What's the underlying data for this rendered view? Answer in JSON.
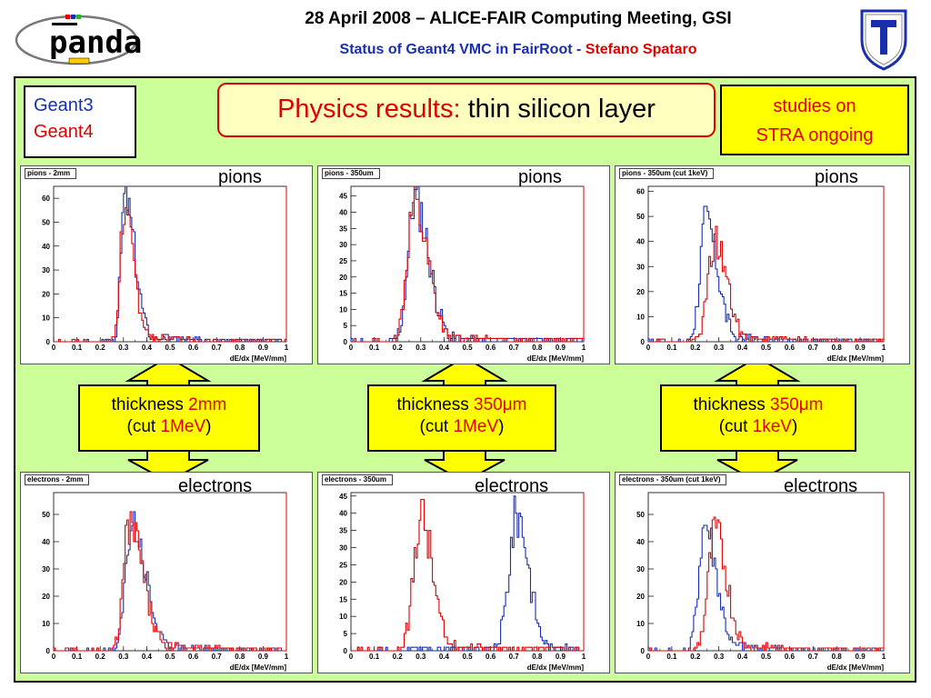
{
  "header": {
    "logo_text": "panda",
    "title_line1": "28 April 2008 – ALICE-FAIR Computing Meeting, GSI",
    "title_line2_blue": "Status of Geant4 VMC in FairRoot -",
    "title_line2_red": "Stefano Spataro"
  },
  "legend": {
    "geant3": "Geant3",
    "geant4": "Geant4"
  },
  "physics_box": {
    "red": "Physics results:",
    "black": "thin silicon layer"
  },
  "studies_box": {
    "line1": "studies on",
    "line2": "STRA ongoing"
  },
  "colors": {
    "geant3": "#1a2fb0",
    "geant4": "#e00000",
    "panel": "#ccff99",
    "arrow": "#ffff00"
  },
  "thickness_labels": [
    {
      "pre": "thickness ",
      "value": "2mm",
      "cut_pre": "(cut ",
      "cut": "1MeV",
      "cut_post": ")"
    },
    {
      "pre": "thickness ",
      "value": "350μm",
      "cut_pre": "(cut ",
      "cut": "1MeV",
      "cut_post": ")"
    },
    {
      "pre": "thickness ",
      "value": "350μm",
      "cut_pre": "(cut ",
      "cut": "1keV",
      "cut_post": ")"
    }
  ],
  "chart_data": [
    {
      "type": "line",
      "title": "pions - 2mm",
      "label": "pions",
      "xlabel": "dE/dx [MeV/mm]",
      "xlim": [
        0,
        1
      ],
      "ylim": [
        0,
        65
      ],
      "xticks": [
        "0",
        "0.1",
        "0.2",
        "0.3",
        "0.4",
        "0.5",
        "0.6",
        "0.7",
        "0.8",
        "0.9",
        "1"
      ],
      "yticks": [
        "0",
        "10",
        "20",
        "30",
        "40",
        "50",
        "60"
      ],
      "series": [
        {
          "name": "Geant3",
          "color": "#1a2fb0",
          "peaks": [
            {
              "mu": 0.305,
              "sigL": 0.016,
              "sigR": 0.045,
              "amp": 60
            }
          ],
          "tail": 3,
          "seed": 3
        },
        {
          "name": "Geant4",
          "color": "#e00000",
          "peaks": [
            {
              "mu": 0.3,
              "sigL": 0.016,
              "sigR": 0.045,
              "amp": 53
            }
          ],
          "tail": 3,
          "seed": 7
        }
      ]
    },
    {
      "type": "line",
      "title": "pions - 350um",
      "label": "pions",
      "xlabel": "dE/dx [MeV/mm]",
      "xlim": [
        0,
        1
      ],
      "ylim": [
        0,
        48
      ],
      "xticks": [
        "0",
        "0.1",
        "0.2",
        "0.3",
        "0.4",
        "0.5",
        "0.6",
        "0.7",
        "0.8",
        "0.9",
        "1"
      ],
      "yticks": [
        "0",
        "5",
        "10",
        "15",
        "20",
        "25",
        "30",
        "35",
        "40",
        "45"
      ],
      "series": [
        {
          "name": "Geant3",
          "color": "#1a2fb0",
          "peaks": [
            {
              "mu": 0.275,
              "sigL": 0.03,
              "sigR": 0.06,
              "amp": 44
            }
          ],
          "tail": 2.5,
          "seed": 11
        },
        {
          "name": "Geant4",
          "color": "#e00000",
          "peaks": [
            {
              "mu": 0.27,
              "sigL": 0.03,
              "sigR": 0.06,
              "amp": 42
            }
          ],
          "tail": 2.5,
          "seed": 13
        }
      ]
    },
    {
      "type": "line",
      "title": "pions - 350um (cut 1keV)",
      "label": "pions",
      "xlabel": "dE/dx [MeV/mm]",
      "xlim": [
        0,
        1
      ],
      "ylim": [
        0,
        62
      ],
      "xticks": [
        "0",
        "0.1",
        "0.2",
        "0.3",
        "0.4",
        "0.5",
        "0.6",
        "0.7",
        "0.8",
        "0.9",
        "1"
      ],
      "yticks": [
        "0",
        "10",
        "20",
        "30",
        "40",
        "50",
        "60"
      ],
      "series": [
        {
          "name": "Geant3",
          "color": "#1a2fb0",
          "peaks": [
            {
              "mu": 0.245,
              "sigL": 0.025,
              "sigR": 0.05,
              "amp": 48
            }
          ],
          "tail": 3,
          "seed": 17
        },
        {
          "name": "Geant4",
          "color": "#e00000",
          "peaks": [
            {
              "mu": 0.285,
              "sigL": 0.03,
              "sigR": 0.05,
              "amp": 40
            }
          ],
          "tail": 3,
          "seed": 19
        }
      ]
    },
    {
      "type": "line",
      "title": "electrons - 2mm",
      "label": "electrons",
      "xlabel": "dE/dx [MeV/mm]",
      "xlim": [
        0,
        1
      ],
      "ylim": [
        0,
        58
      ],
      "xticks": [
        "0",
        "0.1",
        "0.2",
        "0.3",
        "0.4",
        "0.5",
        "0.6",
        "0.7",
        "0.8",
        "0.9",
        "1"
      ],
      "yticks": [
        "0",
        "10",
        "20",
        "30",
        "40",
        "50"
      ],
      "series": [
        {
          "name": "Geant3",
          "color": "#1a2fb0",
          "peaks": [
            {
              "mu": 0.335,
              "sigL": 0.025,
              "sigR": 0.06,
              "amp": 47
            }
          ],
          "tail": 3,
          "seed": 23
        },
        {
          "name": "Geant4",
          "color": "#e00000",
          "peaks": [
            {
              "mu": 0.325,
              "sigL": 0.025,
              "sigR": 0.06,
              "amp": 46
            }
          ],
          "tail": 3,
          "seed": 29
        }
      ]
    },
    {
      "type": "line",
      "title": "electrons - 350um",
      "label": "electrons",
      "xlabel": "dE/dx [MeV/mm]",
      "xlim": [
        0,
        1
      ],
      "ylim": [
        0,
        46
      ],
      "xticks": [
        "0",
        "0.1",
        "0.2",
        "0.3",
        "0.4",
        "0.5",
        "0.6",
        "0.7",
        "0.8",
        "0.9",
        "1"
      ],
      "yticks": [
        "0",
        "5",
        "10",
        "15",
        "20",
        "25",
        "30",
        "35",
        "40",
        "45"
      ],
      "series": [
        {
          "name": "Geant3",
          "color": "#1a2fb0",
          "peaks": [
            {
              "mu": 0.715,
              "sigL": 0.035,
              "sigR": 0.05,
              "amp": 40
            }
          ],
          "tail": 1.5,
          "seed": 31
        },
        {
          "name": "Geant4",
          "color": "#e00000",
          "peaks": [
            {
              "mu": 0.3,
              "sigL": 0.03,
              "sigR": 0.05,
              "amp": 40
            }
          ],
          "tail": 2.5,
          "seed": 37
        }
      ]
    },
    {
      "type": "line",
      "title": "electrons - 350um (cut 1keV)",
      "label": "electrons",
      "xlabel": "dE/dx [MeV/mm]",
      "xlim": [
        0,
        1
      ],
      "ylim": [
        0,
        58
      ],
      "xticks": [
        "0",
        "0.1",
        "0.2",
        "0.3",
        "0.4",
        "0.5",
        "0.6",
        "0.7",
        "0.8",
        "0.9",
        "1"
      ],
      "yticks": [
        "0",
        "10",
        "20",
        "30",
        "40",
        "50"
      ],
      "series": [
        {
          "name": "Geant3",
          "color": "#1a2fb0",
          "peaks": [
            {
              "mu": 0.24,
              "sigL": 0.025,
              "sigR": 0.05,
              "amp": 46
            }
          ],
          "tail": 3,
          "seed": 41
        },
        {
          "name": "Geant4",
          "color": "#e00000",
          "peaks": [
            {
              "mu": 0.285,
              "sigL": 0.03,
              "sigR": 0.05,
              "amp": 43
            }
          ],
          "tail": 3,
          "seed": 43
        }
      ]
    }
  ]
}
